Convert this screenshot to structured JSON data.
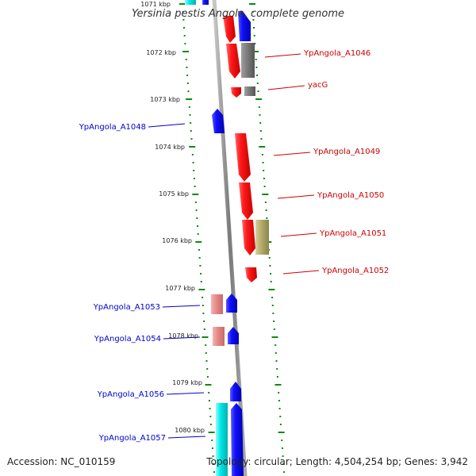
{
  "header": {
    "title": "Yersinia pestis Angola, complete genome"
  },
  "footer": {
    "accession": "Accession: NC_010159",
    "summary": "Topology: circular; Length: 4,504,254 bp; Genes: 3,942"
  },
  "axis": {
    "ticks": [
      {
        "label": "1071 kbp"
      },
      {
        "label": "1072 kbp"
      },
      {
        "label": "1073 kbp"
      },
      {
        "label": "1074 kbp"
      },
      {
        "label": "1075 kbp"
      },
      {
        "label": "1076 kbp"
      },
      {
        "label": "1077 kbp"
      },
      {
        "label": "1078 kbp"
      },
      {
        "label": "1079 kbp"
      },
      {
        "label": "1080 kbp"
      }
    ]
  },
  "labels": {
    "right": [
      "YpAngola_A1046",
      "yacG",
      "YpAngola_A1049",
      "YpAngola_A1050",
      "YpAngola_A1051",
      "YpAngola_A1052"
    ],
    "left": [
      "YpAngola_A1048",
      "YpAngola_A1053",
      "YpAngola_A1054",
      "YpAngola_A1056",
      "YpAngola_A1057"
    ]
  },
  "colors": {
    "forward_gene": "#ff0000",
    "reverse_gene": "#0000ff",
    "label_forward": "#cc0000",
    "label_reverse": "#0000cc",
    "backbone": "#888888",
    "ruler_dots": "#118811",
    "gray_feature": "#808080",
    "olive_feature": "#b8b070",
    "pink_feature": "#e89090",
    "cyan_feature": "#00e8e8"
  }
}
